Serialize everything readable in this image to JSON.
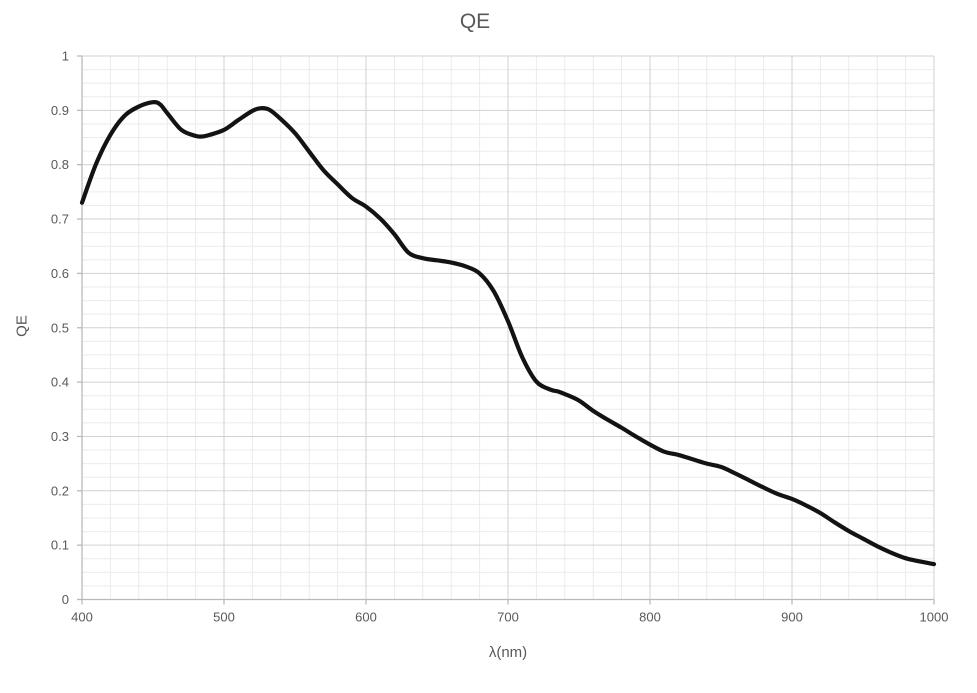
{
  "chart_data": {
    "type": "line",
    "title": "QE",
    "xlabel": "λ(nm)",
    "ylabel": "QE",
    "xlim": [
      400,
      1000
    ],
    "ylim": [
      0,
      1
    ],
    "x_ticks": [
      [
        400,
        "400"
      ],
      [
        500,
        "500"
      ],
      [
        600,
        "600"
      ],
      [
        700,
        "700"
      ],
      [
        800,
        "800"
      ],
      [
        900,
        "900"
      ],
      [
        1000,
        "1000"
      ]
    ],
    "y_ticks": [
      [
        0,
        "0"
      ],
      [
        0.1,
        "0.1"
      ],
      [
        0.2,
        "0.2"
      ],
      [
        0.3,
        "0.3"
      ],
      [
        0.4,
        "0.4"
      ],
      [
        0.5,
        "0.5"
      ],
      [
        0.6,
        "0.6"
      ],
      [
        0.7,
        "0.7"
      ],
      [
        0.8,
        "0.8"
      ],
      [
        0.9,
        "0.9"
      ],
      [
        1,
        "1"
      ]
    ],
    "x_minor_step": 20,
    "y_minor_step": 0.025,
    "grid": {
      "major": true,
      "minor": true
    },
    "legend_position": "none",
    "series": [
      {
        "name": "QE",
        "smooth": true,
        "points": [
          [
            400,
            0.73
          ],
          [
            410,
            0.802
          ],
          [
            420,
            0.855
          ],
          [
            430,
            0.89
          ],
          [
            440,
            0.907
          ],
          [
            450,
            0.915
          ],
          [
            455,
            0.911
          ],
          [
            460,
            0.895
          ],
          [
            470,
            0.864
          ],
          [
            480,
            0.853
          ],
          [
            485,
            0.852
          ],
          [
            490,
            0.855
          ],
          [
            500,
            0.864
          ],
          [
            510,
            0.882
          ],
          [
            520,
            0.899
          ],
          [
            526,
            0.904
          ],
          [
            532,
            0.901
          ],
          [
            540,
            0.884
          ],
          [
            550,
            0.858
          ],
          [
            560,
            0.824
          ],
          [
            570,
            0.79
          ],
          [
            580,
            0.764
          ],
          [
            590,
            0.739
          ],
          [
            600,
            0.723
          ],
          [
            610,
            0.701
          ],
          [
            620,
            0.672
          ],
          [
            630,
            0.638
          ],
          [
            640,
            0.628
          ],
          [
            650,
            0.624
          ],
          [
            660,
            0.62
          ],
          [
            670,
            0.613
          ],
          [
            680,
            0.6
          ],
          [
            690,
            0.567
          ],
          [
            700,
            0.512
          ],
          [
            710,
            0.446
          ],
          [
            720,
            0.401
          ],
          [
            730,
            0.386
          ],
          [
            735,
            0.383
          ],
          [
            740,
            0.378
          ],
          [
            750,
            0.366
          ],
          [
            760,
            0.347
          ],
          [
            770,
            0.331
          ],
          [
            780,
            0.316
          ],
          [
            790,
            0.3
          ],
          [
            800,
            0.285
          ],
          [
            810,
            0.272
          ],
          [
            820,
            0.266
          ],
          [
            830,
            0.258
          ],
          [
            840,
            0.25
          ],
          [
            850,
            0.244
          ],
          [
            860,
            0.232
          ],
          [
            870,
            0.219
          ],
          [
            880,
            0.206
          ],
          [
            890,
            0.194
          ],
          [
            900,
            0.185
          ],
          [
            910,
            0.173
          ],
          [
            920,
            0.159
          ],
          [
            930,
            0.142
          ],
          [
            940,
            0.126
          ],
          [
            950,
            0.112
          ],
          [
            960,
            0.098
          ],
          [
            970,
            0.086
          ],
          [
            980,
            0.076
          ],
          [
            990,
            0.07
          ],
          [
            1000,
            0.065
          ]
        ]
      }
    ],
    "colors": {
      "line": "#131313",
      "grid_minor": "#ebebeb",
      "grid_major": "#d2d2d2",
      "axis": "#b9b9b9",
      "text": "#595959",
      "background": "#ffffff"
    }
  }
}
